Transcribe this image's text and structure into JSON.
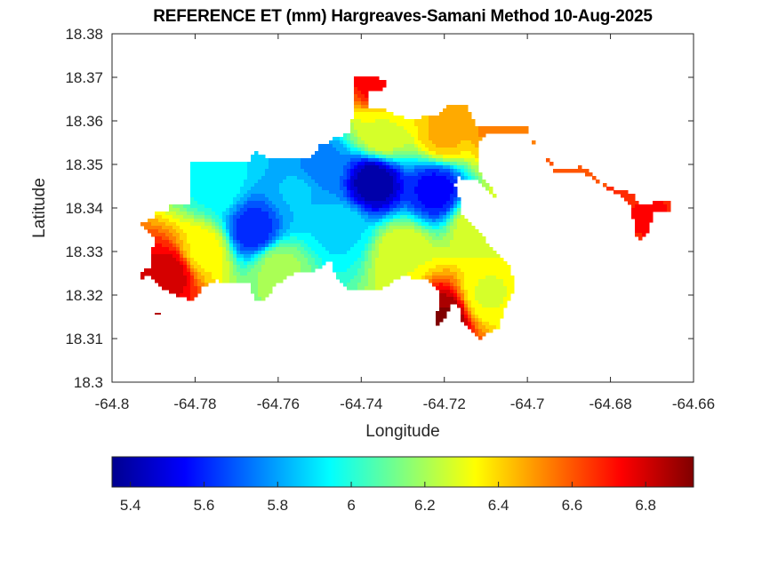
{
  "chart_data": {
    "type": "heatmap",
    "title": "REFERENCE ET (mm) Hargreaves-Samani Method  10-Aug-2025",
    "xlabel": "Longitude",
    "ylabel": "Latitude",
    "xlim": [
      -64.8,
      -64.66
    ],
    "ylim": [
      18.3,
      18.38
    ],
    "xticks": [
      -64.8,
      -64.78,
      -64.76,
      -64.74,
      -64.72,
      -64.7,
      -64.68,
      -64.66
    ],
    "xtick_labels": [
      "-64.8",
      "-64.78",
      "-64.76",
      "-64.74",
      "-64.72",
      "-64.7",
      "-64.68",
      "-64.66"
    ],
    "yticks": [
      18.3,
      18.31,
      18.32,
      18.33,
      18.34,
      18.35,
      18.36,
      18.37,
      18.38
    ],
    "ytick_labels": [
      "18.3",
      "18.31",
      "18.32",
      "18.33",
      "18.34",
      "18.35",
      "18.36",
      "18.37",
      "18.38"
    ],
    "grid": false,
    "colormap": "jet",
    "colorbar": {
      "orientation": "horizontal",
      "placement": "bottom",
      "range": [
        5.35,
        6.93
      ],
      "ticks": [
        5.4,
        5.6,
        5.8,
        6.0,
        6.2,
        6.4,
        6.6,
        6.8
      ],
      "tick_labels": [
        "5.4",
        "5.6",
        "5.8",
        "6",
        "6.2",
        "6.4",
        "6.6",
        "6.8"
      ]
    },
    "field_summary": {
      "min_value": 5.35,
      "max_value": 6.93,
      "low_center": {
        "lon": -64.737,
        "lat": 18.346,
        "value": 5.38
      },
      "features": [
        {
          "desc": "low ET core (blue)",
          "lon": -64.737,
          "lat": 18.346,
          "value": 5.4
        },
        {
          "desc": "secondary low (blue)",
          "lon": -64.722,
          "lat": 18.344,
          "value": 5.55
        },
        {
          "desc": "west-central low (blue)",
          "lon": -64.766,
          "lat": 18.335,
          "value": 5.6
        },
        {
          "desc": "southwest high (red)",
          "lon": -64.786,
          "lat": 18.325,
          "value": 6.8
        },
        {
          "desc": "north tip high (red)",
          "lon": -64.735,
          "lat": 18.369,
          "value": 6.75
        },
        {
          "desc": "south coast high (dark red)",
          "lon": -64.72,
          "lat": 18.315,
          "value": 6.9
        },
        {
          "desc": "east peninsula high (red)",
          "lon": -64.671,
          "lat": 18.338,
          "value": 6.7
        },
        {
          "desc": "southeast moderate (yellow-green)",
          "lon": -64.71,
          "lat": 18.32,
          "value": 6.3
        }
      ]
    }
  }
}
